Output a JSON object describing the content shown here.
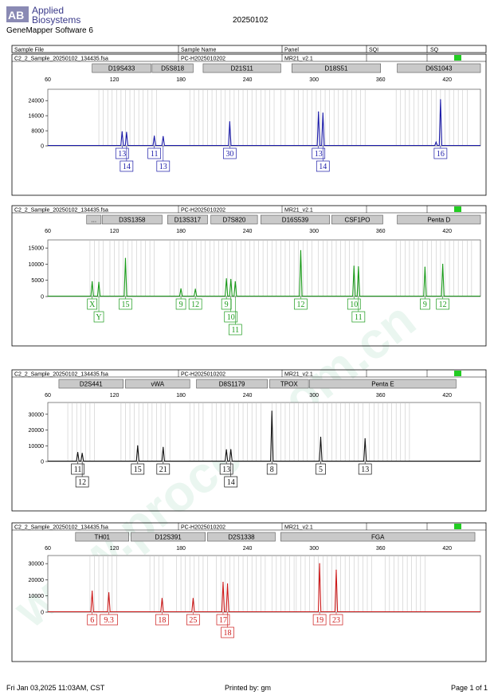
{
  "header": {
    "logo_line1": "Applied",
    "logo_line2": "Biosystems",
    "software": "GeneMapper Software 6",
    "date": "20250102"
  },
  "table_header": {
    "sample_file": "Sample File",
    "sample_name": "Sample Name",
    "panel": "Panel",
    "sqi": "SQI",
    "sq": "SQ"
  },
  "watermark": "www.procell.com.cn",
  "footer": {
    "timestamp": "Fri Jan 03,2025 11:03AM, CST",
    "printed_by": "Printed by: gm",
    "page": "Page 1 of 1"
  },
  "colors": {
    "blue": "#1a1aa8",
    "green": "#1a9a1a",
    "black": "#111111",
    "red": "#cc1a1a",
    "quality_ok": "#22cc22",
    "bin_line": "#c8c8c8",
    "marker_fill": "#c9c9c9"
  },
  "chart_data": [
    {
      "type": "line",
      "dye": "blue",
      "sample_file": "C2_2_Sample_20250102_134435.fsa",
      "sample_name": "PC-H2025010202",
      "panel": "MR21_v2.1",
      "xlim": [
        60,
        450
      ],
      "x_ticks": [
        60,
        120,
        180,
        240,
        300,
        360,
        420
      ],
      "ylim": [
        0,
        30000
      ],
      "y_ticks": [
        0,
        8000,
        16000,
        24000
      ],
      "markers": [
        {
          "name": "D19S433",
          "start": 100,
          "end": 153
        },
        {
          "name": "D5S818",
          "start": 154,
          "end": 191
        },
        {
          "name": "D21S11",
          "start": 200,
          "end": 270
        },
        {
          "name": "D18S51",
          "start": 280,
          "end": 360
        },
        {
          "name": "D6S1043",
          "start": 375,
          "end": 450
        }
      ],
      "bins": [
        [
          106,
          158
        ],
        [
          188,
          204
        ],
        [
          208,
          264
        ],
        [
          270,
          276
        ],
        [
          282,
          346
        ],
        [
          374,
          440
        ]
      ],
      "peaks": [
        {
          "x": 127,
          "height": 7500
        },
        {
          "x": 131,
          "height": 7200
        },
        {
          "x": 156,
          "height": 5200
        },
        {
          "x": 164,
          "height": 5000
        },
        {
          "x": 224,
          "height": 12800
        },
        {
          "x": 304,
          "height": 18000
        },
        {
          "x": 308,
          "height": 17400
        },
        {
          "x": 410,
          "height": 2000
        },
        {
          "x": 414,
          "height": 24500
        }
      ],
      "alleles": [
        {
          "x": 127,
          "label": "13",
          "row": 1
        },
        {
          "x": 131,
          "label": "14",
          "row": 2
        },
        {
          "x": 156,
          "label": "11",
          "row": 1
        },
        {
          "x": 164,
          "label": "13",
          "row": 2
        },
        {
          "x": 224,
          "label": "30",
          "row": 1
        },
        {
          "x": 304,
          "label": "13",
          "row": 1
        },
        {
          "x": 308,
          "label": "14",
          "row": 2
        },
        {
          "x": 414,
          "label": "16",
          "row": 1
        }
      ]
    },
    {
      "type": "line",
      "dye": "green",
      "sample_file": "C2_2_Sample_20250102_134435.fsa",
      "sample_name": "PC-H2025010202",
      "panel": "MR21_v2.1",
      "xlim": [
        60,
        450
      ],
      "x_ticks": [
        60,
        120,
        180,
        240,
        300,
        360,
        420
      ],
      "ylim": [
        0,
        17500
      ],
      "y_ticks": [
        0,
        5000,
        10000,
        15000
      ],
      "markers": [
        {
          "name": "...",
          "start": 95,
          "end": 108
        },
        {
          "name": "D3S1358",
          "start": 109,
          "end": 163
        },
        {
          "name": "D13S317",
          "start": 168,
          "end": 204
        },
        {
          "name": "D7S820",
          "start": 207,
          "end": 249
        },
        {
          "name": "D16S539",
          "start": 252,
          "end": 314
        },
        {
          "name": "CSF1PO",
          "start": 316,
          "end": 362
        },
        {
          "name": "Penta D",
          "start": 375,
          "end": 450
        }
      ],
      "bins": [
        [
          98,
          110
        ],
        [
          116,
          156
        ],
        [
          170,
          208
        ],
        [
          210,
          250
        ],
        [
          254,
          298
        ],
        [
          304,
          344
        ],
        [
          374,
          442
        ]
      ],
      "peaks": [
        {
          "x": 100,
          "height": 4600
        },
        {
          "x": 106,
          "height": 4400
        },
        {
          "x": 130,
          "height": 11800
        },
        {
          "x": 180,
          "height": 2400
        },
        {
          "x": 193,
          "height": 2300
        },
        {
          "x": 221,
          "height": 5500
        },
        {
          "x": 225,
          "height": 5300
        },
        {
          "x": 229,
          "height": 4600
        },
        {
          "x": 288,
          "height": 14200
        },
        {
          "x": 336,
          "height": 9400
        },
        {
          "x": 340,
          "height": 9200
        },
        {
          "x": 400,
          "height": 9100
        },
        {
          "x": 416,
          "height": 10000
        }
      ],
      "alleles": [
        {
          "x": 100,
          "label": "X",
          "row": 1
        },
        {
          "x": 106,
          "label": "Y",
          "row": 2
        },
        {
          "x": 130,
          "label": "15",
          "row": 1
        },
        {
          "x": 180,
          "label": "9",
          "row": 1
        },
        {
          "x": 193,
          "label": "12",
          "row": 1
        },
        {
          "x": 221,
          "label": "9",
          "row": 1
        },
        {
          "x": 225,
          "label": "10",
          "row": 2
        },
        {
          "x": 229,
          "label": "11",
          "row": 3
        },
        {
          "x": 288,
          "label": "12",
          "row": 1
        },
        {
          "x": 336,
          "label": "10",
          "row": 1
        },
        {
          "x": 340,
          "label": "11",
          "row": 2
        },
        {
          "x": 400,
          "label": "9",
          "row": 1
        },
        {
          "x": 416,
          "label": "12",
          "row": 1
        }
      ]
    },
    {
      "type": "line",
      "dye": "black",
      "sample_file": "C2_2_Sample_20250102_134435.fsa",
      "sample_name": "PC-H2025010202",
      "panel": "MR21_v2.1",
      "xlim": [
        60,
        450
      ],
      "x_ticks": [
        60,
        120,
        180,
        240,
        300,
        360,
        420
      ],
      "ylim": [
        0,
        37500
      ],
      "y_ticks": [
        0,
        10000,
        20000,
        30000
      ],
      "markers": [
        {
          "name": "D2S441",
          "start": 70,
          "end": 128
        },
        {
          "name": "vWA",
          "start": 130,
          "end": 188
        },
        {
          "name": "D8S1179",
          "start": 194,
          "end": 258
        },
        {
          "name": "TPOX",
          "start": 260,
          "end": 295
        },
        {
          "name": "Penta E",
          "start": 296,
          "end": 428
        }
      ],
      "bins": [
        [
          78,
          104
        ],
        [
          126,
          172
        ],
        [
          188,
          202
        ],
        [
          208,
          252
        ],
        [
          262,
          296
        ],
        [
          300,
          346
        ],
        [
          350,
          386
        ]
      ],
      "peaks": [
        {
          "x": 87,
          "height": 5800
        },
        {
          "x": 91,
          "height": 5200
        },
        {
          "x": 141,
          "height": 10000
        },
        {
          "x": 164,
          "height": 9000
        },
        {
          "x": 221,
          "height": 7500
        },
        {
          "x": 225,
          "height": 7600
        },
        {
          "x": 262,
          "height": 32000
        },
        {
          "x": 306,
          "height": 15500
        },
        {
          "x": 346,
          "height": 14500
        }
      ],
      "alleles": [
        {
          "x": 87,
          "label": "11",
          "row": 1
        },
        {
          "x": 91,
          "label": "12",
          "row": 2
        },
        {
          "x": 141,
          "label": "15",
          "row": 1
        },
        {
          "x": 164,
          "label": "21",
          "row": 1
        },
        {
          "x": 221,
          "label": "13",
          "row": 1
        },
        {
          "x": 225,
          "label": "14",
          "row": 2
        },
        {
          "x": 262,
          "label": "8",
          "row": 1
        },
        {
          "x": 306,
          "label": "5",
          "row": 1
        },
        {
          "x": 346,
          "label": "13",
          "row": 1
        }
      ]
    },
    {
      "type": "line",
      "dye": "red",
      "sample_file": "C2_2_Sample_20250102_134435.fsa",
      "sample_name": "PC-H2025010202",
      "panel": "MR21_v2.1",
      "xlim": [
        60,
        450
      ],
      "x_ticks": [
        60,
        120,
        180,
        240,
        300,
        360,
        420
      ],
      "ylim": [
        0,
        35000
      ],
      "y_ticks": [
        0,
        10000,
        20000,
        30000
      ],
      "markers": [
        {
          "name": "TH01",
          "start": 85,
          "end": 133
        },
        {
          "name": "D12S391",
          "start": 135,
          "end": 202
        },
        {
          "name": "D2S1338",
          "start": 204,
          "end": 265
        },
        {
          "name": "FGA",
          "start": 270,
          "end": 445
        }
      ],
      "bins": [
        [
          98,
          122
        ],
        [
          152,
          164
        ],
        [
          176,
          204
        ],
        [
          212,
          256
        ],
        [
          262,
          282
        ],
        [
          284,
          352
        ],
        [
          364,
          400
        ]
      ],
      "peaks": [
        {
          "x": 100,
          "height": 13000
        },
        {
          "x": 115,
          "height": 12000
        },
        {
          "x": 163,
          "height": 8500
        },
        {
          "x": 191,
          "height": 8500
        },
        {
          "x": 218,
          "height": 18500
        },
        {
          "x": 222,
          "height": 17500
        },
        {
          "x": 305,
          "height": 30000
        },
        {
          "x": 320,
          "height": 26000
        }
      ],
      "alleles": [
        {
          "x": 100,
          "label": "6",
          "row": 1
        },
        {
          "x": 115,
          "label": "9.3",
          "row": 1
        },
        {
          "x": 163,
          "label": "18",
          "row": 1
        },
        {
          "x": 191,
          "label": "25",
          "row": 1
        },
        {
          "x": 218,
          "label": "17",
          "row": 1
        },
        {
          "x": 222,
          "label": "18",
          "row": 2
        },
        {
          "x": 305,
          "label": "19",
          "row": 1
        },
        {
          "x": 320,
          "label": "23",
          "row": 1
        }
      ]
    }
  ]
}
